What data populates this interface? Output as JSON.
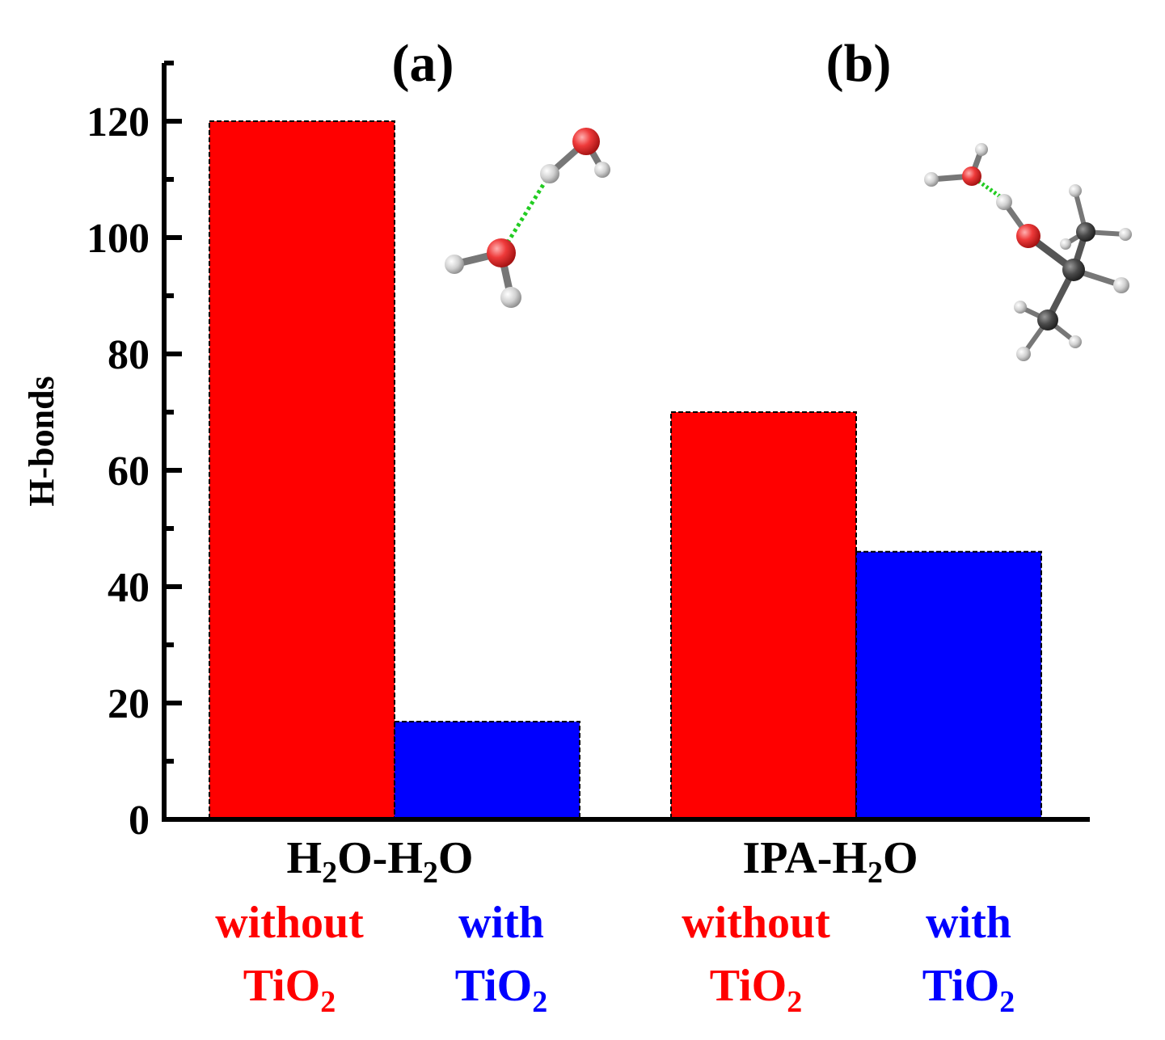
{
  "chart_data": {
    "type": "bar",
    "title": "",
    "ylabel": "H-bonds",
    "xlabel": "",
    "ylim": [
      0,
      130
    ],
    "yticks": [
      0,
      20,
      40,
      60,
      80,
      100,
      120
    ],
    "categories": [
      "H2O-H2O",
      "IPA-H2O"
    ],
    "series": [
      {
        "name": "without TiO2",
        "color": "#ff0000",
        "values": [
          120,
          70
        ]
      },
      {
        "name": "with TiO2",
        "color": "#0000ff",
        "values": [
          16.8,
          46
        ]
      }
    ],
    "panel_labels": [
      "(a)",
      "(b)"
    ],
    "group_labels": [
      {
        "parts": [
          "H",
          "2",
          "O-H",
          "2",
          "O"
        ]
      },
      {
        "parts": [
          "IPA-H",
          "2",
          "O"
        ]
      }
    ],
    "condition_labels": [
      {
        "line1": "without",
        "line2": "TiO",
        "sub": "2",
        "color": "#ff0000"
      },
      {
        "line1": "with",
        "line2": "TiO",
        "sub": "2",
        "color": "#0000ff"
      },
      {
        "line1": "without",
        "line2": "TiO",
        "sub": "2",
        "color": "#ff0000"
      },
      {
        "line1": "with",
        "line2": "TiO",
        "sub": "2",
        "color": "#0000ff"
      }
    ],
    "insets": [
      {
        "name": "water-dimer-molecule",
        "description_icon": "molecule-icon"
      },
      {
        "name": "ipa-water-molecule",
        "description_icon": "molecule-icon"
      }
    ]
  },
  "colors": {
    "oxygen": "#e8323a",
    "hydrogen": "#d9d9d9",
    "carbon": "#4a4a4a",
    "hbond": "#22cc22"
  }
}
